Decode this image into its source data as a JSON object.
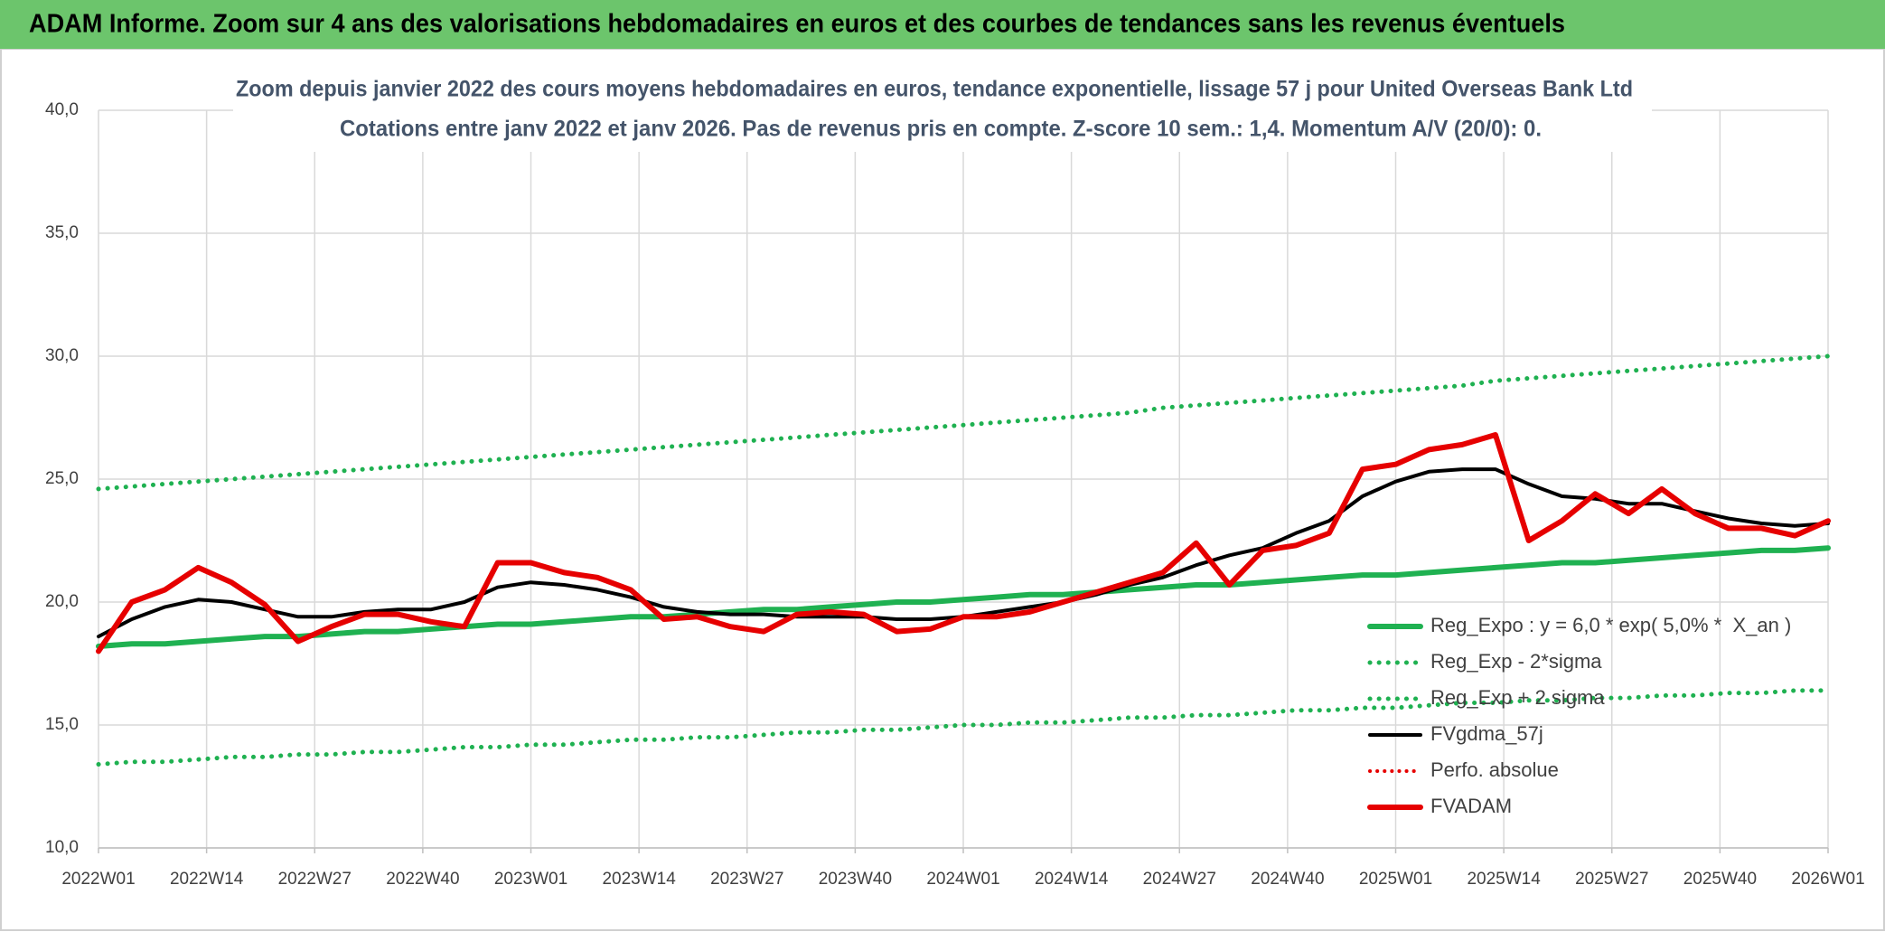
{
  "header": "ADAM Informe. Zoom sur 4 ans des valorisations hebdomadaires en euros et des courbes de tendances sans les revenus éventuels",
  "chart_data": {
    "type": "line",
    "title": "Zoom depuis janvier 2022 des cours moyens hebdomadaires en euros, tendance exponentielle, lissage 57 j pour United Overseas Bank Ltd",
    "subtitle": "Cotations entre janv 2022 et janv 2026. Pas de revenus pris en compte. Z-score 10 sem.: 1,4. Momentum A/V (20/0): 0.",
    "x": [
      0,
      4,
      8,
      12,
      16,
      20,
      24,
      28,
      32,
      36,
      40,
      44,
      48,
      52,
      56,
      60,
      64,
      68,
      72,
      76,
      80,
      84,
      88,
      92,
      96,
      100,
      104,
      108,
      112,
      116,
      120,
      124,
      128,
      132,
      136,
      140,
      144,
      148,
      152,
      156,
      160,
      164,
      168,
      172,
      176,
      180,
      184,
      188,
      192,
      196,
      200,
      204,
      208
    ],
    "xlim": [
      0,
      208
    ],
    "xticks": [
      {
        "value": 0,
        "label": "2022W01"
      },
      {
        "value": 13,
        "label": "2022W14"
      },
      {
        "value": 26,
        "label": "2022W27"
      },
      {
        "value": 39,
        "label": "2022W40"
      },
      {
        "value": 52,
        "label": "2023W01"
      },
      {
        "value": 65,
        "label": "2023W14"
      },
      {
        "value": 78,
        "label": "2023W27"
      },
      {
        "value": 91,
        "label": "2023W40"
      },
      {
        "value": 104,
        "label": "2024W01"
      },
      {
        "value": 117,
        "label": "2024W14"
      },
      {
        "value": 130,
        "label": "2024W27"
      },
      {
        "value": 143,
        "label": "2024W40"
      },
      {
        "value": 156,
        "label": "2025W01"
      },
      {
        "value": 169,
        "label": "2025W14"
      },
      {
        "value": 182,
        "label": "2025W27"
      },
      {
        "value": 195,
        "label": "2025W40"
      },
      {
        "value": 208,
        "label": "2026W01"
      }
    ],
    "ylim": [
      10,
      40
    ],
    "yticks": [
      {
        "value": 10,
        "label": "10,0"
      },
      {
        "value": 15,
        "label": "15,0"
      },
      {
        "value": 20,
        "label": "20,0"
      },
      {
        "value": 25,
        "label": "25,0"
      },
      {
        "value": 30,
        "label": "30,0"
      },
      {
        "value": 35,
        "label": "35,0"
      },
      {
        "value": 40,
        "label": "40,0"
      }
    ],
    "grid": true,
    "legend": "bottom-right",
    "series": [
      {
        "name": "Reg_Expo : y = 6,0 * exp( 5,0% *  X_an )",
        "color": "#1fb151",
        "dash": "solid",
        "width": 6,
        "values": [
          18.2,
          18.3,
          18.3,
          18.4,
          18.5,
          18.6,
          18.6,
          18.7,
          18.8,
          18.8,
          18.9,
          19.0,
          19.1,
          19.1,
          19.2,
          19.3,
          19.4,
          19.4,
          19.5,
          19.6,
          19.7,
          19.7,
          19.8,
          19.9,
          20.0,
          20.0,
          20.1,
          20.2,
          20.3,
          20.3,
          20.4,
          20.5,
          20.6,
          20.7,
          20.7,
          20.8,
          20.9,
          21.0,
          21.1,
          21.1,
          21.2,
          21.3,
          21.4,
          21.5,
          21.6,
          21.6,
          21.7,
          21.8,
          21.9,
          22.0,
          22.1,
          22.1,
          22.2
        ]
      },
      {
        "name": "Reg_Exp - 2*sigma",
        "color": "#1fb151",
        "dash": "dotted",
        "width": 5,
        "values": [
          13.4,
          13.5,
          13.5,
          13.6,
          13.7,
          13.7,
          13.8,
          13.8,
          13.9,
          13.9,
          14.0,
          14.1,
          14.1,
          14.2,
          14.2,
          14.3,
          14.4,
          14.4,
          14.5,
          14.5,
          14.6,
          14.7,
          14.7,
          14.8,
          14.8,
          14.9,
          15.0,
          15.0,
          15.1,
          15.1,
          15.2,
          15.3,
          15.3,
          15.4,
          15.4,
          15.5,
          15.6,
          15.6,
          15.7,
          15.7,
          15.8,
          15.9,
          15.9,
          16.0,
          16.0,
          16.1,
          16.1,
          16.2,
          16.2,
          16.3,
          16.3,
          16.4,
          16.4
        ]
      },
      {
        "name": "Reg_Exp + 2 sigma",
        "color": "#1fb151",
        "dash": "dotted",
        "width": 5,
        "values": [
          24.6,
          24.7,
          24.8,
          24.9,
          25.0,
          25.1,
          25.2,
          25.3,
          25.4,
          25.5,
          25.6,
          25.7,
          25.8,
          25.9,
          26.0,
          26.1,
          26.2,
          26.3,
          26.4,
          26.5,
          26.6,
          26.7,
          26.8,
          26.9,
          27.0,
          27.1,
          27.2,
          27.3,
          27.4,
          27.5,
          27.6,
          27.7,
          27.9,
          28.0,
          28.1,
          28.2,
          28.3,
          28.4,
          28.5,
          28.6,
          28.7,
          28.8,
          29.0,
          29.1,
          29.2,
          29.3,
          29.4,
          29.5,
          29.6,
          29.7,
          29.8,
          29.9,
          30.0
        ]
      },
      {
        "name": "FVgdma_57j",
        "color": "#000000",
        "dash": "solid",
        "width": 4,
        "values": [
          18.6,
          19.3,
          19.8,
          20.1,
          20.0,
          19.7,
          19.4,
          19.4,
          19.6,
          19.7,
          19.7,
          20.0,
          20.6,
          20.8,
          20.7,
          20.5,
          20.2,
          19.8,
          19.6,
          19.5,
          19.5,
          19.4,
          19.4,
          19.4,
          19.3,
          19.3,
          19.4,
          19.6,
          19.8,
          20.0,
          20.3,
          20.7,
          21.0,
          21.5,
          21.9,
          22.2,
          22.8,
          23.3,
          24.3,
          24.9,
          25.3,
          25.4,
          25.4,
          24.8,
          24.3,
          24.2,
          24.0,
          24.0,
          23.7,
          23.4,
          23.2,
          23.1,
          23.2
        ]
      },
      {
        "name": "Perfo. absolue",
        "color": "#e60000",
        "dash": "dotted",
        "width": 4,
        "values": [
          null,
          null,
          null,
          null,
          null,
          null,
          null,
          null,
          null,
          null,
          null,
          null,
          null,
          null,
          null,
          null,
          null,
          null,
          null,
          null,
          null,
          null,
          null,
          null,
          null,
          null,
          null,
          null,
          null,
          null,
          null,
          null,
          null,
          null,
          null,
          null,
          null,
          null,
          null,
          null,
          null,
          null,
          null,
          null,
          null,
          null,
          null,
          null,
          null,
          null,
          null,
          null,
          null
        ]
      },
      {
        "name": "FVADAM",
        "color": "#e60000",
        "dash": "solid",
        "width": 6,
        "values": [
          18.0,
          20.0,
          20.5,
          21.4,
          20.8,
          19.9,
          18.4,
          19.0,
          19.5,
          19.5,
          19.2,
          19.0,
          21.6,
          21.6,
          21.2,
          21.0,
          20.5,
          19.3,
          19.4,
          19.0,
          18.8,
          19.5,
          19.6,
          19.5,
          18.8,
          18.9,
          19.4,
          19.4,
          19.6,
          20.0,
          20.4,
          20.8,
          21.2,
          22.4,
          20.7,
          22.1,
          22.3,
          22.8,
          25.4,
          25.6,
          26.2,
          26.4,
          26.8,
          22.5,
          23.3,
          24.4,
          23.6,
          24.6,
          23.6,
          23.0,
          23.0,
          22.7,
          23.3
        ]
      }
    ]
  }
}
